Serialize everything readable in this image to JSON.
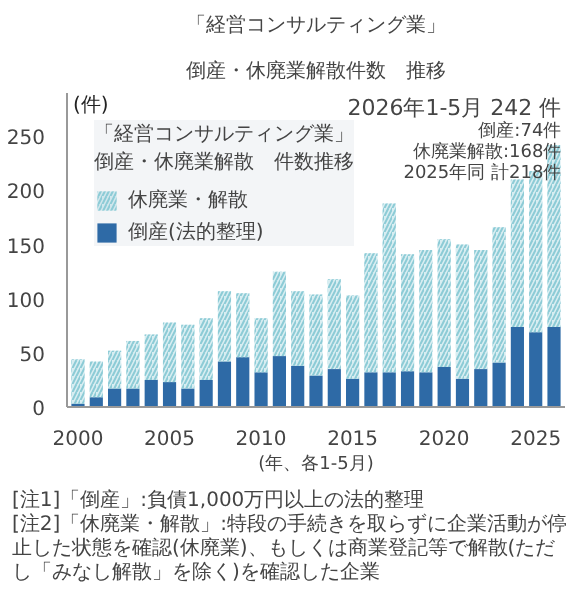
{
  "chart_data": {
    "type": "bar",
    "stacked": true,
    "title": "「経営コンサルティング業」",
    "subtitle": "倒産・休廃業解散件数　推移",
    "xlabel": "(年、各1-5月)",
    "ylabel": "(件)",
    "legend_title": "「経営コンサルティング業」倒産・休廃業解散　件数推移",
    "legend": "top left",
    "grid": false,
    "x": [
      2000,
      2001,
      2002,
      2003,
      2004,
      2005,
      2006,
      2007,
      2008,
      2009,
      2010,
      2011,
      2012,
      2013,
      2014,
      2015,
      2016,
      2017,
      2018,
      2019,
      2020,
      2021,
      2022,
      2023,
      2024,
      2025,
      2026
    ],
    "xlim": [
      1999.4,
      2026.6
    ],
    "xticks": [
      2000,
      2005,
      2010,
      2015,
      2020,
      2025
    ],
    "ylim": [
      0,
      290
    ],
    "yticks": [
      0,
      50,
      100,
      150,
      200,
      250
    ],
    "series": [
      {
        "name": "倒産(法的整理)",
        "color": "#2e6aa6",
        "values": [
          3,
          9,
          17,
          17,
          25,
          23,
          17,
          25,
          42,
          46,
          32,
          47,
          38,
          29,
          35,
          26,
          32,
          32,
          33,
          32,
          37,
          26,
          35,
          41,
          74,
          69,
          74
        ]
      },
      {
        "name": "休廃業・解散",
        "color": "#8ccbd6",
        "values": [
          41,
          33,
          35,
          44,
          42,
          55,
          59,
          57,
          65,
          59,
          50,
          78,
          69,
          75,
          83,
          77,
          110,
          156,
          108,
          113,
          118,
          124,
          110,
          125,
          136,
          149,
          168
        ]
      }
    ],
    "annotations": [
      "2026年1-5月 242 件",
      "倒産:74件",
      "休廃業解散:168件",
      "2025年同 計218件",
      "[注1]「倒産」:負債1,000万円以上の法的整理",
      "[注2]「休廃業・解散」:特段の手続きを取らずに企業活動が停止した状態を確認(休廃業)、もしくは商業登記等で解散(ただし「みなし解散」を除く)を確認した企業"
    ]
  }
}
